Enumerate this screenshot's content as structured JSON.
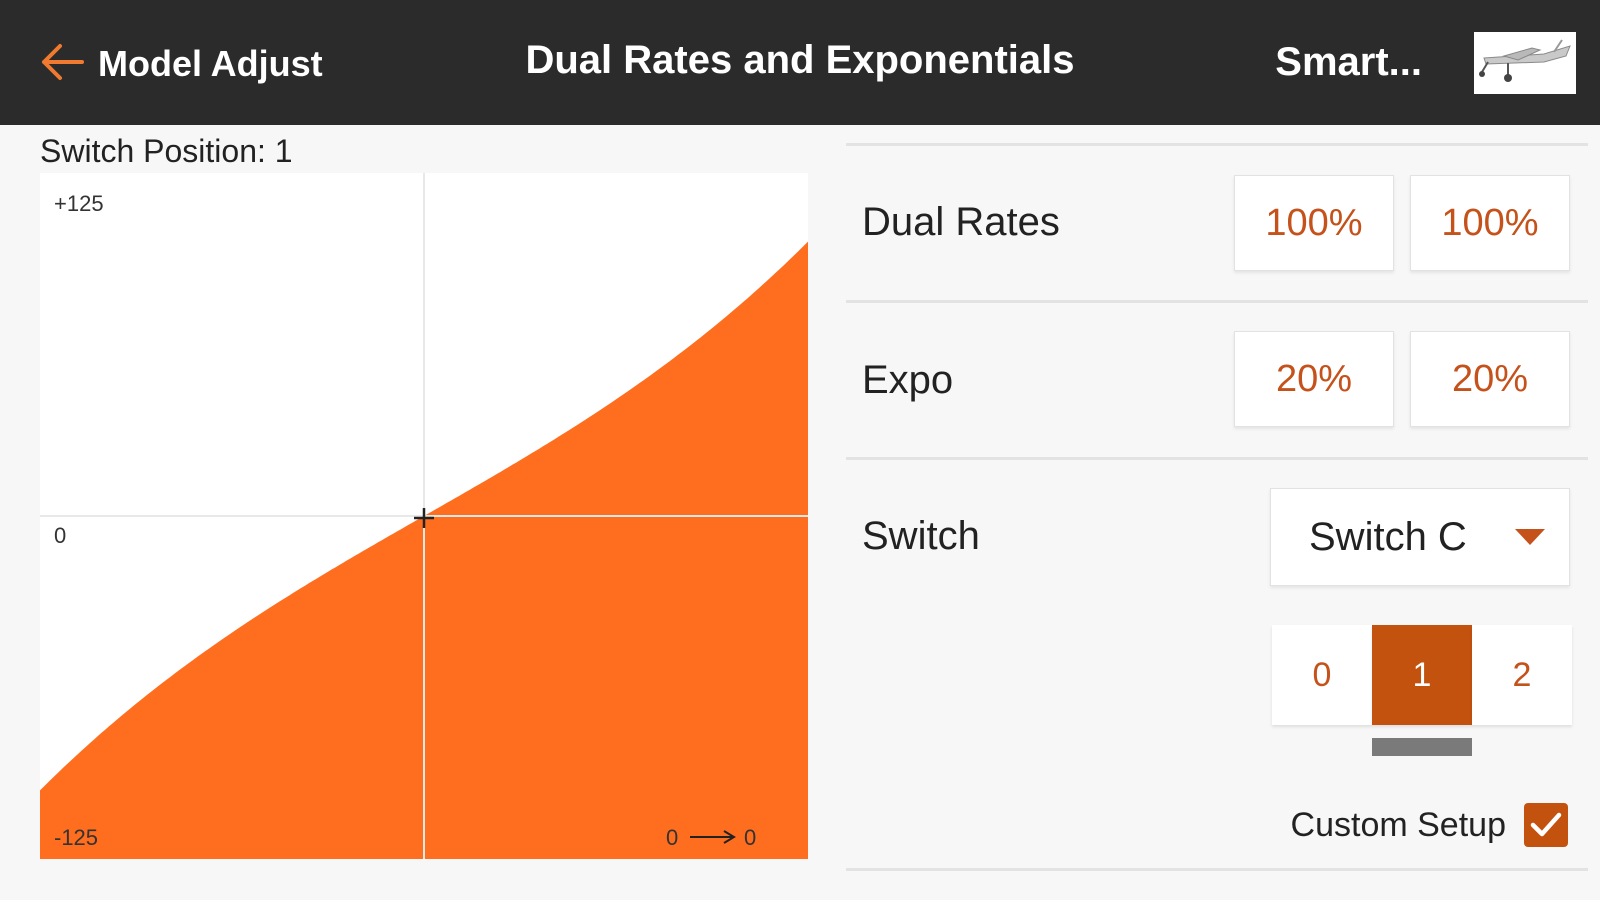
{
  "header": {
    "back_label": "Model Adjust",
    "title": "Dual Rates and Exponentials",
    "model_name": "Smart...",
    "back_icon": "arrow-left-icon",
    "model_thumb_icon": "airplane-icon"
  },
  "curve": {
    "switch_position_label": "Switch Position: 1",
    "y_max_label": "+125",
    "y_zero_label": "0",
    "y_min_label": "-125",
    "x_readout_left": "0",
    "x_readout_right": "0",
    "axis_range": [
      -125,
      125
    ],
    "dual_rate": 100,
    "expo": 20,
    "fill_color": "#ff6d1f"
  },
  "settings": {
    "dual_rates": {
      "label": "Dual Rates",
      "values": [
        "100%",
        "100%"
      ]
    },
    "expo": {
      "label": "Expo",
      "values": [
        "20%",
        "20%"
      ]
    },
    "switch": {
      "label": "Switch",
      "selected": "Switch C",
      "positions": [
        "0",
        "1",
        "2"
      ],
      "active_position": "1"
    },
    "custom_setup": {
      "label": "Custom Setup",
      "checked": true
    }
  },
  "colors": {
    "accent": "#c4520f",
    "accent_text": "#c4521a",
    "header_bg": "#2b2b2b"
  }
}
